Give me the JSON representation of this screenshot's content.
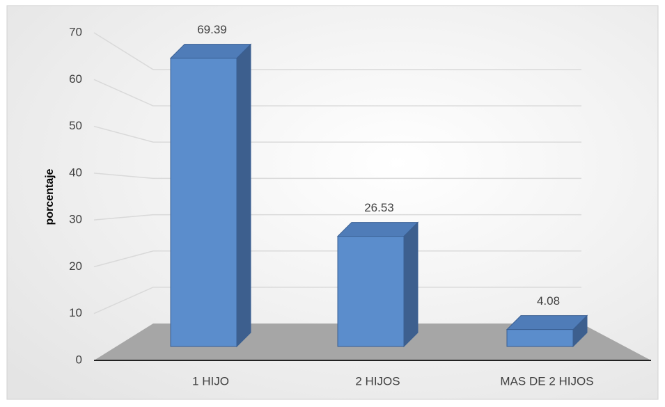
{
  "chart_data": {
    "type": "bar",
    "y_label": "porcentaje",
    "categories": [
      "1 HIJO",
      "2 HIJOS",
      "MAS DE 2 HIJOS"
    ],
    "values": [
      69.39,
      26.53,
      4.08
    ],
    "color": "#5b8dcc",
    "ylim": [
      0,
      70
    ],
    "yticks": [
      0,
      10,
      20,
      30,
      40,
      50,
      60,
      70
    ],
    "grid": true
  }
}
